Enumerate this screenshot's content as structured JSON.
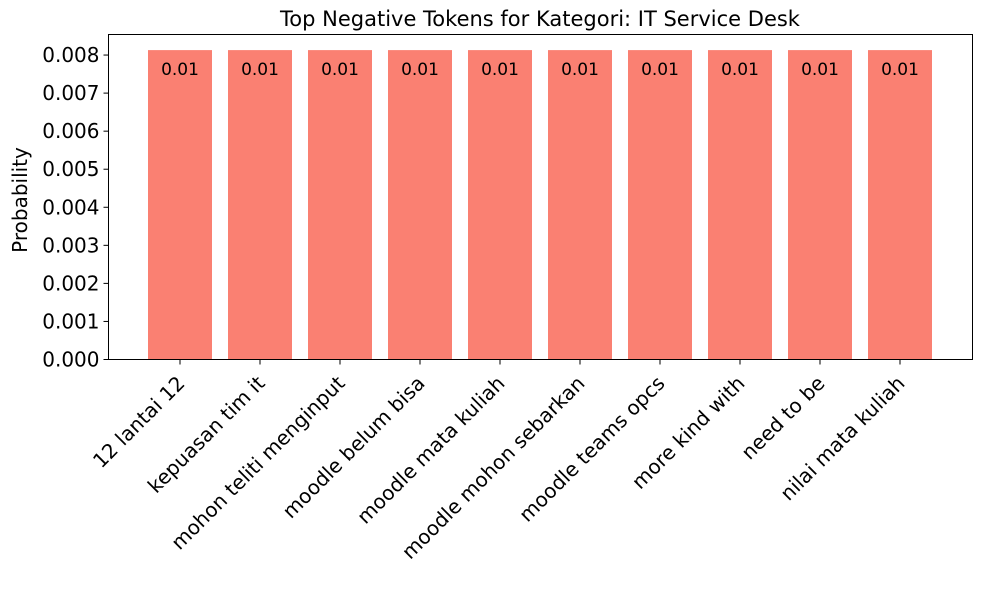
{
  "chart_data": {
    "type": "bar",
    "title": "Top Negative Tokens for Kategori: IT Service Desk",
    "xlabel": "",
    "ylabel": "Probability",
    "categories": [
      "12 lantai 12",
      "kepuasan tim it",
      "mohon teliti menginput",
      "moodle belum bisa",
      "moodle mata kuliah",
      "moodle mohon sebarkan",
      "moodle teams opcs",
      "more kind with",
      "need to be",
      "nilai mata kuliah"
    ],
    "values": [
      0.00813,
      0.00813,
      0.00813,
      0.00813,
      0.00813,
      0.00813,
      0.00813,
      0.00813,
      0.00813,
      0.00813
    ],
    "bar_labels": [
      "0.01",
      "0.01",
      "0.01",
      "0.01",
      "0.01",
      "0.01",
      "0.01",
      "0.01",
      "0.01",
      "0.01"
    ],
    "yticks": [
      "0.000",
      "0.001",
      "0.002",
      "0.003",
      "0.004",
      "0.005",
      "0.006",
      "0.007",
      "0.008"
    ],
    "ylim": [
      0,
      0.00854
    ],
    "bar_color": "#fa8072",
    "grid": false,
    "legend": false
  }
}
